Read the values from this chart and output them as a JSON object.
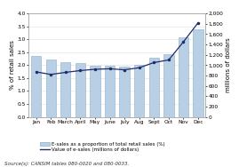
{
  "months": [
    "Jan",
    "Feb",
    "March",
    "April",
    "May",
    "June",
    "July",
    "Aug",
    "Sept",
    "Oct",
    "Nov",
    "Dec"
  ],
  "bar_values": [
    2.35,
    2.2,
    2.13,
    2.07,
    1.97,
    1.97,
    1.93,
    2.02,
    2.28,
    2.42,
    3.07,
    3.38
  ],
  "line_values": [
    870,
    820,
    860,
    895,
    920,
    930,
    910,
    950,
    1050,
    1100,
    1450,
    1820
  ],
  "bar_color": "#b8cfe4",
  "bar_edge_color": "#8aaec8",
  "line_color": "#1f2d6e",
  "left_ylabel": "% of retail sales",
  "right_ylabel": "millions of dollars",
  "left_ylim": [
    0,
    4.0
  ],
  "right_ylim": [
    0,
    2000
  ],
  "left_yticks": [
    0.0,
    0.5,
    1.0,
    1.5,
    2.0,
    2.5,
    3.0,
    3.5,
    4.0
  ],
  "right_yticks": [
    0,
    200,
    400,
    600,
    800,
    1000,
    1200,
    1400,
    1600,
    1800,
    2000
  ],
  "legend_bar_label": "E-sales as a proportion of total retail sales (%)",
  "legend_line_label": "Value of e-sales (millions of dollars)",
  "source_text": "Source(s): CANSIM tables 080-0020 and 080-0033.",
  "ylabel_fontsize": 5.0,
  "tick_fontsize": 4.2,
  "legend_fontsize": 4.0,
  "source_fontsize": 4.0,
  "background_color": "#ffffff",
  "grid_color": "#dddddd",
  "spine_color": "#aaaaaa"
}
